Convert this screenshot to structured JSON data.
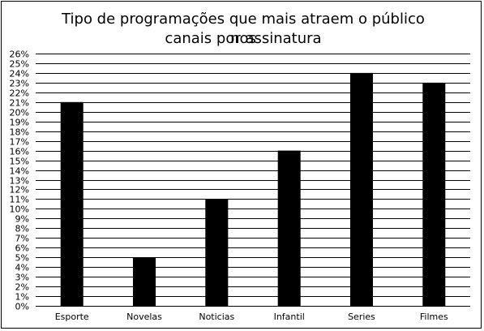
{
  "chart_data": {
    "type": "bar",
    "title_lines": [
      "Tipo de programações que mais atraem o público nos",
      "canais por assinatura"
    ],
    "categories": [
      "Esporte",
      "Novelas",
      "Noticias",
      "Infantil",
      "Series",
      "Filmes"
    ],
    "values": [
      21,
      5,
      11,
      16,
      24,
      23
    ],
    "ylim": [
      0,
      26
    ],
    "y_ticks": [
      "0%",
      "1%",
      "2%",
      "3%",
      "4%",
      "5%",
      "6%",
      "7%",
      "8%",
      "9%",
      "10%",
      "11%",
      "12%",
      "13%",
      "14%",
      "15%",
      "16%",
      "17%",
      "18%",
      "19%",
      "20%",
      "21%",
      "22%",
      "23%",
      "24%",
      "25%",
      "26%"
    ],
    "grid": true,
    "legend": "none",
    "bar_color": "#000000",
    "grid_color": "#000000"
  }
}
